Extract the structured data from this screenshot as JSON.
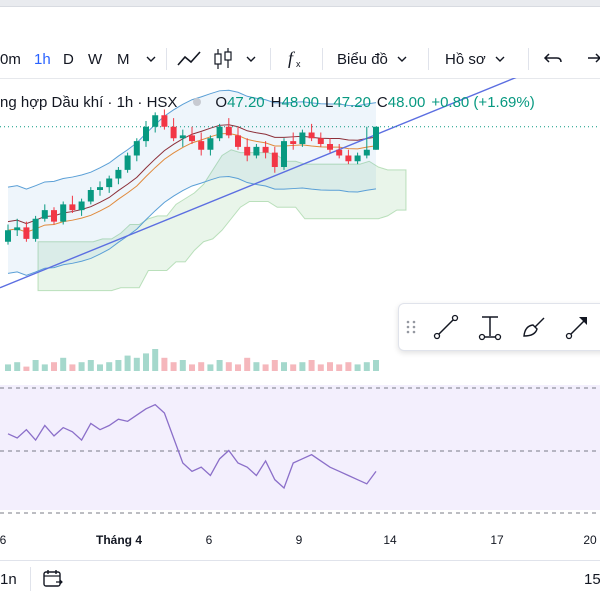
{
  "toolbar": {
    "interval_partial": "0m",
    "interval_active": "1h",
    "interval_d": "D",
    "interval_w": "W",
    "interval_m": "M",
    "chart_type_label": "Biểu đồ",
    "profile_label": "Hồ sơ"
  },
  "legend": {
    "symbol_title": "ng hợp Dầu khí · 1h · HSX",
    "open_key": "O",
    "open_val": "47.20",
    "high_key": "H",
    "high_val": "48.00",
    "low_key": "L",
    "low_val": "47.20",
    "close_key": "C",
    "close_val": "48.00",
    "change": "+0.80 (+1.69%)"
  },
  "xaxis": {
    "labels": [
      "6",
      "Tháng 4",
      "6",
      "9",
      "14",
      "17",
      "20"
    ]
  },
  "bottombar": {
    "range_partial": "1n",
    "right_partial": "15"
  },
  "colors": {
    "up": "#089981",
    "down": "#f23645",
    "trendline": "#5b6ee1",
    "bands": "#5a9fd6",
    "rsi": "#8b6fc9",
    "rsi_bg": "#f3effd"
  },
  "chart_data": {
    "type": "candlestick",
    "candles": [
      [
        44.0,
        44.6,
        43.9,
        44.4
      ],
      [
        44.4,
        44.8,
        44.2,
        44.5
      ],
      [
        44.5,
        44.7,
        44.0,
        44.1
      ],
      [
        44.1,
        44.9,
        44.0,
        44.8
      ],
      [
        44.8,
        45.3,
        44.7,
        45.1
      ],
      [
        45.1,
        45.2,
        44.6,
        44.7
      ],
      [
        44.7,
        45.4,
        44.6,
        45.3
      ],
      [
        45.3,
        45.6,
        45.0,
        45.1
      ],
      [
        45.1,
        45.5,
        44.9,
        45.4
      ],
      [
        45.4,
        45.9,
        45.3,
        45.8
      ],
      [
        45.8,
        46.1,
        45.6,
        45.9
      ],
      [
        45.9,
        46.3,
        45.7,
        46.2
      ],
      [
        46.2,
        46.6,
        46.0,
        46.5
      ],
      [
        46.5,
        47.1,
        46.4,
        47.0
      ],
      [
        47.0,
        47.6,
        46.8,
        47.5
      ],
      [
        47.5,
        48.2,
        47.3,
        48.0
      ],
      [
        48.0,
        48.5,
        47.8,
        48.4
      ],
      [
        48.4,
        48.6,
        47.9,
        48.0
      ],
      [
        48.0,
        48.3,
        47.5,
        47.6
      ],
      [
        47.6,
        47.9,
        47.3,
        47.7
      ],
      [
        47.7,
        48.0,
        47.4,
        47.5
      ],
      [
        47.5,
        47.8,
        47.0,
        47.2
      ],
      [
        47.2,
        47.7,
        47.0,
        47.6
      ],
      [
        47.6,
        48.1,
        47.5,
        48.0
      ],
      [
        48.0,
        48.3,
        47.6,
        47.7
      ],
      [
        47.7,
        48.0,
        47.2,
        47.3
      ],
      [
        47.3,
        47.6,
        46.8,
        47.0
      ],
      [
        47.0,
        47.4,
        46.9,
        47.3
      ],
      [
        47.3,
        47.5,
        46.9,
        47.1
      ],
      [
        47.1,
        47.3,
        46.4,
        46.6
      ],
      [
        46.6,
        47.6,
        46.5,
        47.5
      ],
      [
        47.5,
        47.8,
        47.2,
        47.4
      ],
      [
        47.4,
        47.9,
        47.3,
        47.8
      ],
      [
        47.8,
        48.1,
        47.5,
        47.6
      ],
      [
        47.6,
        47.8,
        47.3,
        47.4
      ],
      [
        47.4,
        47.6,
        47.1,
        47.2
      ],
      [
        47.2,
        47.4,
        46.9,
        47.0
      ],
      [
        47.0,
        47.2,
        46.7,
        46.8
      ],
      [
        46.8,
        47.1,
        46.7,
        47.0
      ],
      [
        47.0,
        48.0,
        46.9,
        47.2
      ],
      [
        47.2,
        48.0,
        47.2,
        48.0
      ]
    ],
    "volume": [
      3,
      4,
      2,
      5,
      3,
      4,
      6,
      3,
      4,
      5,
      3,
      4,
      5,
      7,
      6,
      8,
      10,
      6,
      4,
      5,
      3,
      4,
      3,
      5,
      4,
      3,
      6,
      4,
      3,
      5,
      4,
      3,
      4,
      5,
      3,
      4,
      3,
      4,
      3,
      4,
      5
    ],
    "rsi": [
      58,
      56,
      60,
      55,
      62,
      57,
      61,
      59,
      55,
      63,
      60,
      62,
      65,
      64,
      67,
      70,
      72,
      68,
      56,
      44,
      40,
      42,
      38,
      46,
      50,
      44,
      42,
      38,
      45,
      36,
      32,
      44,
      46,
      48,
      45,
      42,
      40,
      38,
      36,
      34,
      40
    ]
  }
}
